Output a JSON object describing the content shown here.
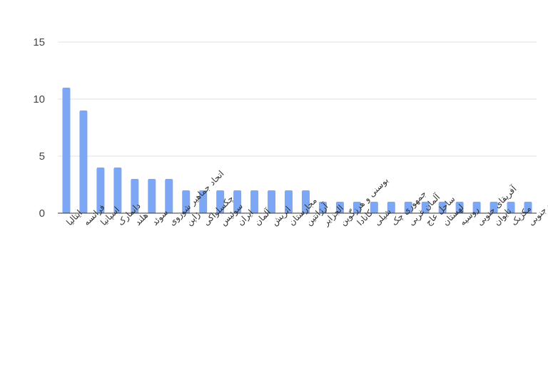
{
  "chart_data": {
    "type": "bar",
    "title": "",
    "xlabel": "",
    "ylabel": "",
    "ylim": [
      0,
      15
    ],
    "yticks": [
      0,
      5,
      10,
      15
    ],
    "grid": true,
    "bar_color": "#7ba7f5",
    "categories": [
      "ایتالیا",
      "فرانسه",
      "اسپانیا",
      "دانمارک",
      "هلند",
      "سوئد",
      "اتحاد جماهیر شوروی",
      "ژاپن",
      "چکسلواکی",
      "سوئیس",
      "ایران",
      "آلمان",
      "اتریش",
      "مجارستان",
      "آرژانتین",
      "الجزایر",
      "بوسنی و هرزگوین",
      "کانادا",
      "شیلی",
      "جمهوری چک",
      "آلمان غربی",
      "ساحل عاج",
      "لهستان",
      "روسیه",
      "آفریقای جنوبی",
      "تایوان",
      "مکزیک",
      "کره جنوبی"
    ],
    "values": [
      11,
      9,
      4,
      4,
      3,
      3,
      3,
      2,
      2,
      2,
      2,
      2,
      2,
      2,
      2,
      1,
      1,
      1,
      1,
      1,
      1,
      1,
      1,
      1,
      1,
      1,
      1,
      1
    ]
  }
}
